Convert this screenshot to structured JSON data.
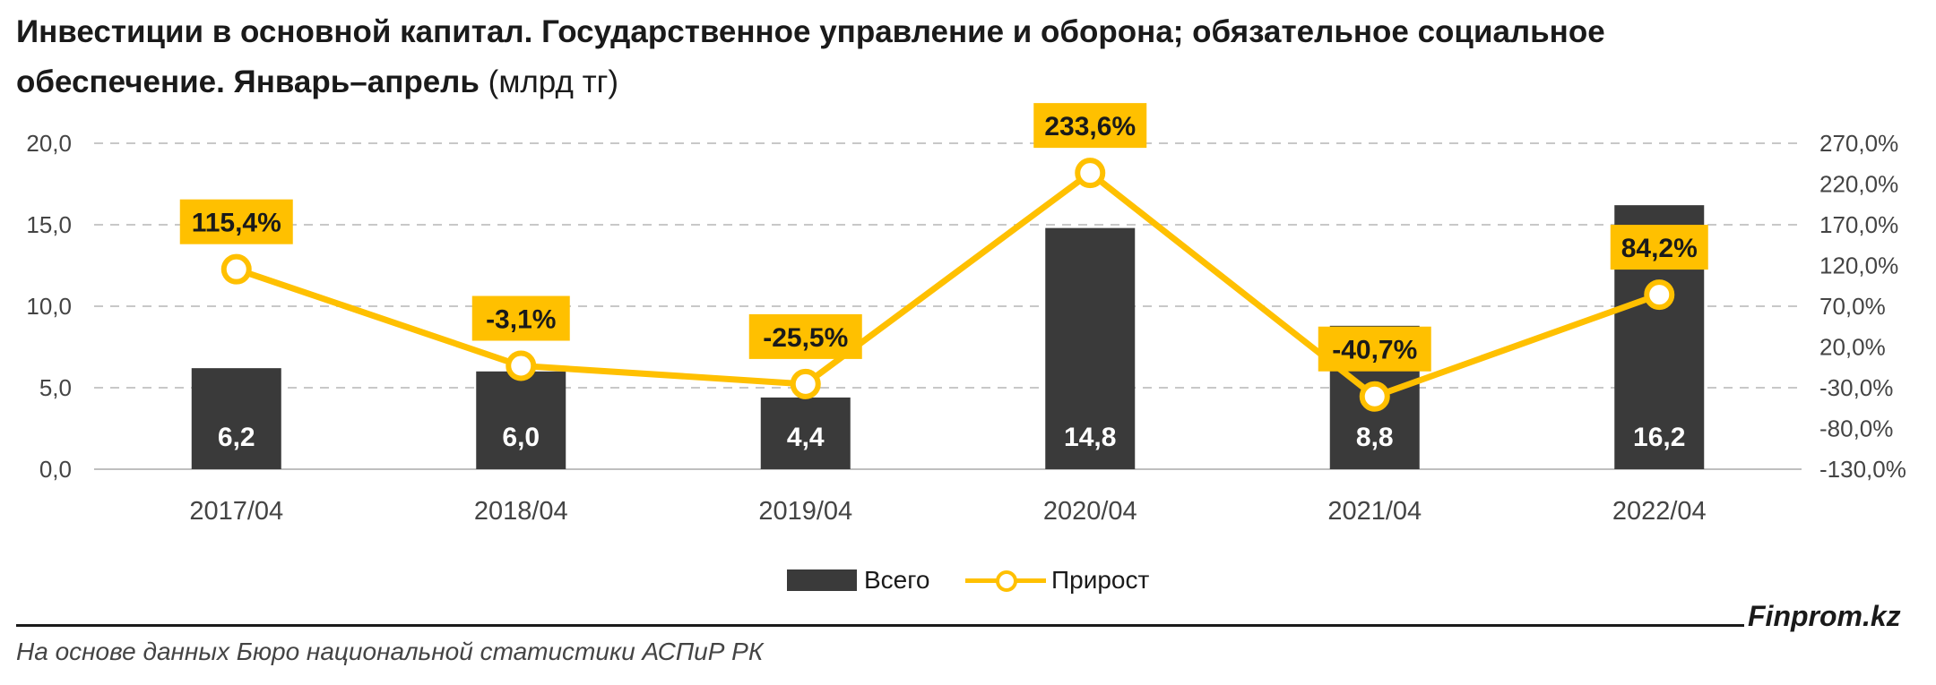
{
  "header": {
    "title_bold": "Инвестиции в основной капитал. Государственное управление и оборона; обязательное социальное обеспечение. Январь–апрель",
    "title_unit": "(млрд тг)"
  },
  "chart_data": {
    "type": "bar",
    "categories": [
      "2017/04",
      "2018/04",
      "2019/04",
      "2020/04",
      "2021/04",
      "2022/04"
    ],
    "series": [
      {
        "name": "Всего",
        "type": "bar",
        "axis": "left",
        "values": [
          6.2,
          6.0,
          4.4,
          14.8,
          8.8,
          16.2
        ],
        "labels": [
          "6,2",
          "6,0",
          "4,4",
          "14,8",
          "8,8",
          "16,2"
        ]
      },
      {
        "name": "Прирост",
        "type": "line",
        "axis": "right",
        "values": [
          115.4,
          -3.1,
          -25.5,
          233.6,
          -40.7,
          84.2
        ],
        "labels": [
          "115,4%",
          "-3,1%",
          "-25,5%",
          "233,6%",
          "-40,7%",
          "84,2%"
        ]
      }
    ],
    "y_left": {
      "min": 0,
      "max": 20,
      "step": 5,
      "tick_labels": [
        "0,0",
        "5,0",
        "10,0",
        "15,0",
        "20,0"
      ]
    },
    "y_right": {
      "min": -130,
      "max": 270,
      "step": 50,
      "tick_labels": [
        "-130,0%",
        "-80,0%",
        "-30,0%",
        "20,0%",
        "70,0%",
        "120,0%",
        "170,0%",
        "220,0%",
        "270,0%"
      ]
    },
    "grid": true,
    "legend": "bottom",
    "colors": {
      "bar": "#3a3a3a",
      "line": "#FFC000",
      "label_box": "#FFC000",
      "bar_label": "#ffffff"
    }
  },
  "footer": {
    "brand": "Finprom.kz",
    "source": "На основе данных Бюро национальной статистики АСПиР РК"
  }
}
